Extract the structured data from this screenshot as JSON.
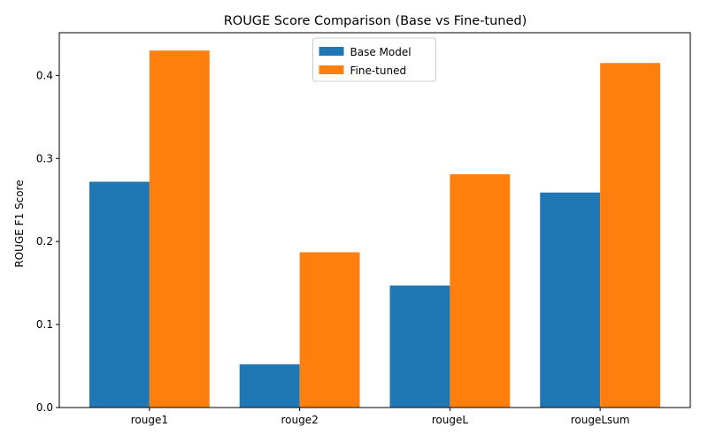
{
  "chart_data": {
    "type": "bar",
    "title": "ROUGE Score Comparison (Base vs Fine-tuned)",
    "xlabel": "",
    "ylabel": "ROUGE F1 Score",
    "categories": [
      "rouge1",
      "rouge2",
      "rougeL",
      "rougeLsum"
    ],
    "series": [
      {
        "name": "Base Model",
        "values": [
          0.272,
          0.052,
          0.147,
          0.259
        ],
        "color": "#1f77b4"
      },
      {
        "name": "Fine-tuned",
        "values": [
          0.43,
          0.187,
          0.281,
          0.415
        ],
        "color": "#ff7f0e"
      }
    ],
    "ylim": [
      0,
      0.4515
    ],
    "yticks": [
      0.0,
      0.1,
      0.2,
      0.3,
      0.4
    ],
    "ytick_labels": [
      "0.0",
      "0.1",
      "0.2",
      "0.3",
      "0.4"
    ],
    "grid": false,
    "legend_position": "top-center"
  }
}
